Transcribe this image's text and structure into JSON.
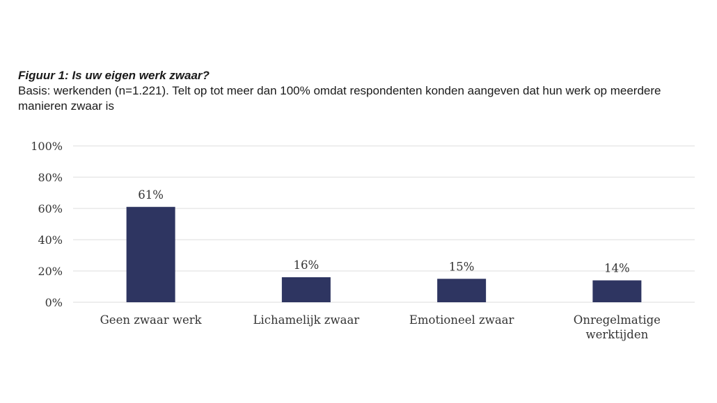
{
  "figure": {
    "title": "Figuur 1: Is uw eigen werk zwaar?",
    "subtitle": "Basis: werkenden (n=1.221). Telt op tot meer dan 100% omdat respondenten konden aangeven dat hun werk op meerdere manieren zwaar is"
  },
  "colors": {
    "bar": "#2e3561",
    "gridline": "#dedede",
    "text": "#333333"
  },
  "chart_data": {
    "type": "bar",
    "title": "Figuur 1: Is uw eigen werk zwaar?",
    "subtitle": "Basis: werkenden (n=1.221). Telt op tot meer dan 100% omdat respondenten konden aangeven dat hun werk op meerdere manieren zwaar is",
    "categories": [
      [
        "Geen zwaar werk"
      ],
      [
        "Lichamelijk zwaar"
      ],
      [
        "Emotioneel zwaar"
      ],
      [
        "Onregelmatige",
        "werktijden"
      ]
    ],
    "values": [
      61,
      16,
      15,
      14
    ],
    "value_labels": [
      "61%",
      "16%",
      "15%",
      "14%"
    ],
    "y_ticks": [
      "0%",
      "20%",
      "40%",
      "60%",
      "80%",
      "100%"
    ],
    "ylim": [
      0,
      100
    ],
    "grid": true,
    "legend": "none"
  }
}
